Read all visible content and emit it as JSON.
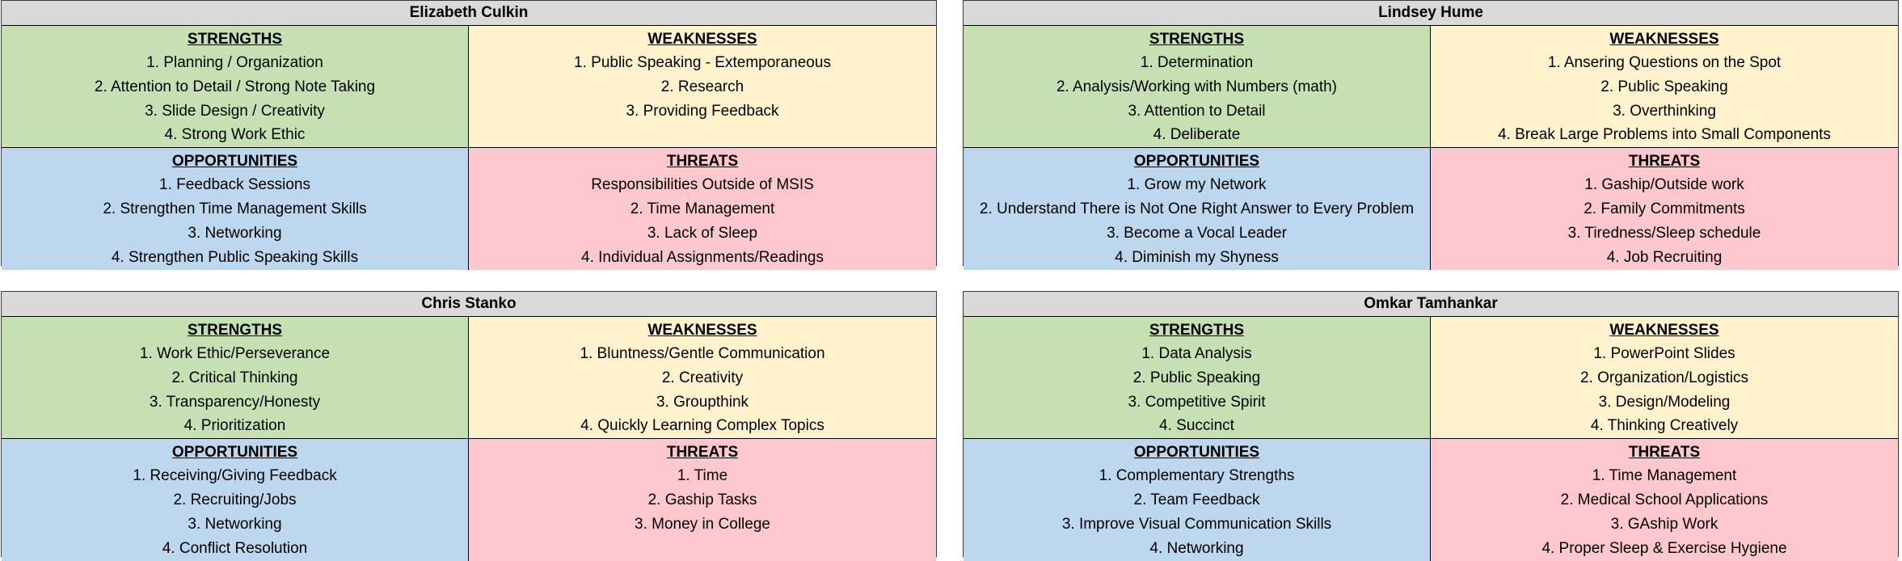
{
  "headers": {
    "strengths": "STRENGTHS",
    "weaknesses": "WEAKNESSES",
    "opportunities": "OPPORTUNITIES",
    "threats": "THREATS"
  },
  "swot": [
    {
      "name": "Elizabeth Culkin",
      "strengths": [
        "1. Planning / Organization",
        "2. Attention to Detail / Strong Note Taking",
        "3. Slide Design / Creativity",
        "4. Strong Work Ethic"
      ],
      "weaknesses": [
        "1. Public Speaking - Extemporaneous",
        "2. Research",
        "3. Providing Feedback"
      ],
      "opportunities": [
        "1. Feedback Sessions",
        "2. Strengthen Time Management Skills",
        "3. Networking",
        "4. Strengthen Public Speaking Skills"
      ],
      "threats": [
        "Responsibilities Outside of MSIS",
        "2. Time Management",
        "3. Lack of Sleep",
        "4. Individual Assignments/Readings"
      ]
    },
    {
      "name": "Lindsey Hume",
      "strengths": [
        "1. Determination",
        "2. Analysis/Working with Numbers (math)",
        "3. Attention to Detail",
        "4. Deliberate"
      ],
      "weaknesses": [
        "1. Ansering Questions on the Spot",
        "2. Public Speaking",
        "3. Overthinking",
        "4. Break Large Problems into Small Components"
      ],
      "opportunities": [
        "1. Grow my Network",
        "2. Understand There is Not One Right Answer to Every Problem",
        "3. Become a Vocal Leader",
        "4. Diminish my Shyness"
      ],
      "threats": [
        "1. Gaship/Outside work",
        "2. Family Commitments",
        "3. Tiredness/Sleep schedule",
        "4. Job Recruiting"
      ]
    },
    {
      "name": "Chris Stanko",
      "strengths": [
        "1. Work Ethic/Perseverance",
        "2. Critical Thinking",
        "3. Transparency/Honesty",
        "4. Prioritization"
      ],
      "weaknesses": [
        "1. Bluntness/Gentle Communication",
        "2. Creativity",
        "3. Groupthink",
        "4. Quickly Learning Complex Topics"
      ],
      "opportunities": [
        "1. Receiving/Giving Feedback",
        "2. Recruiting/Jobs",
        "3. Networking",
        "4. Conflict Resolution"
      ],
      "threats": [
        "1. Time",
        "2. Gaship Tasks",
        "3. Money in College"
      ]
    },
    {
      "name": "Omkar Tamhankar",
      "strengths": [
        "1. Data Analysis",
        "2. Public Speaking",
        "3. Competitive Spirit",
        "4. Succinct"
      ],
      "weaknesses": [
        "1. PowerPoint Slides",
        "2. Organization/Logistics",
        "3. Design/Modeling",
        "4. Thinking Creatively"
      ],
      "opportunities": [
        "1. Complementary Strengths",
        "2. Team Feedback",
        "3. Improve Visual Communication Skills",
        "4. Networking"
      ],
      "threats": [
        "1. Time Management",
        "2. Medical School Applications",
        "3. GAship Work",
        "4. Proper Sleep & Exercise Hygiene"
      ]
    }
  ]
}
